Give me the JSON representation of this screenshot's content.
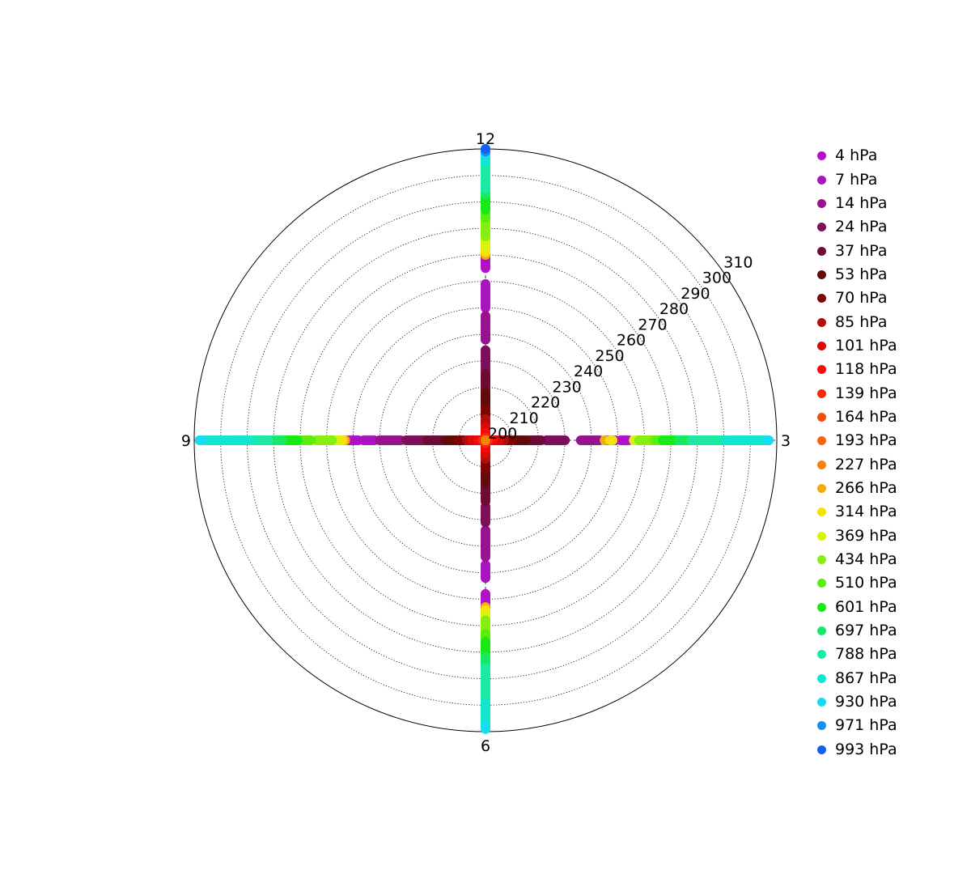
{
  "chart_data": {
    "type": "scatter",
    "subtype": "polar",
    "title": "",
    "radial_axis": {
      "range": [
        200,
        310
      ],
      "ticks": [
        200,
        210,
        220,
        230,
        240,
        250,
        260,
        270,
        280,
        290,
        300,
        310
      ],
      "grid": true
    },
    "angular_axis": {
      "ticks": [
        "12",
        "3",
        "6",
        "9"
      ],
      "grid": true
    },
    "legend": {
      "placement": "right"
    },
    "series": [
      {
        "name": "4 hPa",
        "color": "#b011c6",
        "directions": {
          "12": [
            265,
            269
          ],
          "3": [
            251,
            254
          ],
          "6": [
            258,
            263
          ],
          "9": [
            248,
            252
          ]
        }
      },
      {
        "name": "7 hPa",
        "color": "#a814bd",
        "directions": {
          "12": [
            250,
            259
          ],
          "3": [
            246,
            249
          ],
          "6": [
            247,
            252
          ],
          "9": [
            242,
            246
          ]
        }
      },
      {
        "name": "14 hPa",
        "color": "#96128e",
        "directions": {
          "12": [
            238,
            247
          ],
          "3": [
            236,
            243
          ],
          "6": [
            234,
            244
          ],
          "9": [
            232,
            240
          ]
        }
      },
      {
        "name": "24 hPa",
        "color": "#7d0e5a",
        "directions": {
          "12": [
            226,
            234
          ],
          "3": [
            223,
            230
          ],
          "6": [
            225,
            231
          ],
          "9": [
            222,
            230
          ]
        }
      },
      {
        "name": "37 hPa",
        "color": "#6e0b34",
        "directions": {
          "12": [
            219,
            225
          ],
          "3": [
            216,
            221
          ],
          "6": [
            217,
            223
          ],
          "9": [
            216,
            222
          ]
        }
      },
      {
        "name": "53 hPa",
        "color": "#600a0a",
        "directions": {
          "12": [
            213,
            218
          ],
          "3": [
            211,
            215
          ],
          "6": [
            212,
            216
          ],
          "9": [
            211,
            215
          ]
        }
      },
      {
        "name": "70 hPa",
        "color": "#7e0505",
        "directions": {
          "12": [
            209,
            212
          ],
          "3": [
            208,
            210
          ],
          "6": [
            208,
            211
          ],
          "9": [
            208,
            210
          ]
        }
      },
      {
        "name": "85 hPa",
        "color": "#b20c0c",
        "directions": {
          "12": [
            206,
            208
          ],
          "3": [
            205,
            207
          ],
          "6": [
            205,
            207
          ],
          "9": [
            205,
            207
          ]
        }
      },
      {
        "name": "101 hPa",
        "color": "#db0a06",
        "directions": {
          "12": [
            203,
            205
          ],
          "3": [
            203,
            205
          ],
          "6": [
            203,
            205
          ],
          "9": [
            203,
            205
          ]
        }
      },
      {
        "name": "118 hPa",
        "color": "#f20c0c",
        "directions": {
          "12": [
            201,
            203
          ],
          "3": [
            201,
            203
          ],
          "6": [
            201,
            203
          ],
          "9": [
            201,
            203
          ]
        }
      },
      {
        "name": "139 hPa",
        "color": "#f22c0b",
        "directions": {
          "12": [
            200,
            201
          ],
          "3": [
            200,
            201
          ],
          "6": [
            200,
            201
          ],
          "9": [
            200,
            201
          ]
        }
      },
      {
        "name": "164 hPa",
        "color": "#f54d0c",
        "directions": {
          "12": [
            200,
            200
          ],
          "3": [
            200,
            200
          ],
          "6": [
            200,
            200
          ],
          "9": [
            200,
            200
          ]
        }
      },
      {
        "name": "193 hPa",
        "color": "#f5640c",
        "directions": {
          "12": [
            200,
            200
          ],
          "3": [
            200,
            200
          ],
          "6": [
            200,
            200
          ],
          "9": [
            200,
            200
          ]
        }
      },
      {
        "name": "227 hPa",
        "color": "#f5820b",
        "directions": {
          "12": [
            200,
            200
          ],
          "3": [
            200,
            200
          ],
          "6": [
            200,
            200
          ],
          "9": [
            200,
            200
          ]
        }
      },
      {
        "name": "266 hPa",
        "color": "#f2ac0a",
        "directions": {
          "12": [
            270,
            270
          ],
          "3": [
            245,
            245
          ],
          "6": [
            263,
            263
          ],
          "9": [
            253,
            253
          ]
        }
      },
      {
        "name": "314 hPa",
        "color": "#f5e10b",
        "directions": {
          "12": [
            271,
            272
          ],
          "3": [
            247,
            248
          ],
          "6": [
            264,
            265
          ],
          "9": [
            254,
            255
          ]
        }
      },
      {
        "name": "369 hPa",
        "color": "#d9f20c",
        "directions": {
          "12": [
            273,
            276
          ],
          "3": [
            256,
            257
          ],
          "6": [
            266,
            267
          ],
          "9": [
            256,
            257
          ]
        }
      },
      {
        "name": "434 hPa",
        "color": "#87ee0e",
        "directions": {
          "12": [
            277,
            283
          ],
          "3": [
            258,
            263
          ],
          "6": [
            268,
            272
          ],
          "9": [
            258,
            264
          ]
        }
      },
      {
        "name": "510 hPa",
        "color": "#5ced0b",
        "directions": {
          "12": [
            284,
            286
          ],
          "3": [
            264,
            266
          ],
          "6": [
            273,
            275
          ],
          "9": [
            266,
            270
          ]
        }
      },
      {
        "name": "601 hPa",
        "color": "#17ea17",
        "directions": {
          "12": [
            287,
            292
          ],
          "3": [
            267,
            272
          ],
          "6": [
            276,
            281
          ],
          "9": [
            271,
            276
          ]
        }
      },
      {
        "name": "697 hPa",
        "color": "#17e965",
        "directions": {
          "12": [
            293,
            294
          ],
          "3": [
            273,
            277
          ],
          "6": [
            282,
            285
          ],
          "9": [
            277,
            281
          ]
        }
      },
      {
        "name": "788 hPa",
        "color": "#1ce9a3",
        "directions": {
          "12": [
            295,
            304
          ],
          "3": [
            278,
            290
          ],
          "6": [
            286,
            298
          ],
          "9": [
            282,
            288
          ]
        }
      },
      {
        "name": "867 hPa",
        "color": "#12e6d1",
        "directions": {
          "12": [
            305,
            307
          ],
          "3": [
            291,
            306
          ],
          "6": [
            299,
            308
          ],
          "9": [
            289,
            306
          ]
        }
      },
      {
        "name": "930 hPa",
        "color": "#17dcf0",
        "directions": {
          "12": [
            308,
            308
          ],
          "3": [
            306,
            307
          ],
          "6": [
            308,
            309
          ],
          "9": [
            307,
            308
          ]
        }
      },
      {
        "name": "971 hPa",
        "color": "#158ff0",
        "directions": {
          "12": [
            309,
            309
          ]
        }
      },
      {
        "name": "993 hPa",
        "color": "#1560f2",
        "directions": {
          "12": [
            310,
            310
          ]
        }
      }
    ]
  }
}
